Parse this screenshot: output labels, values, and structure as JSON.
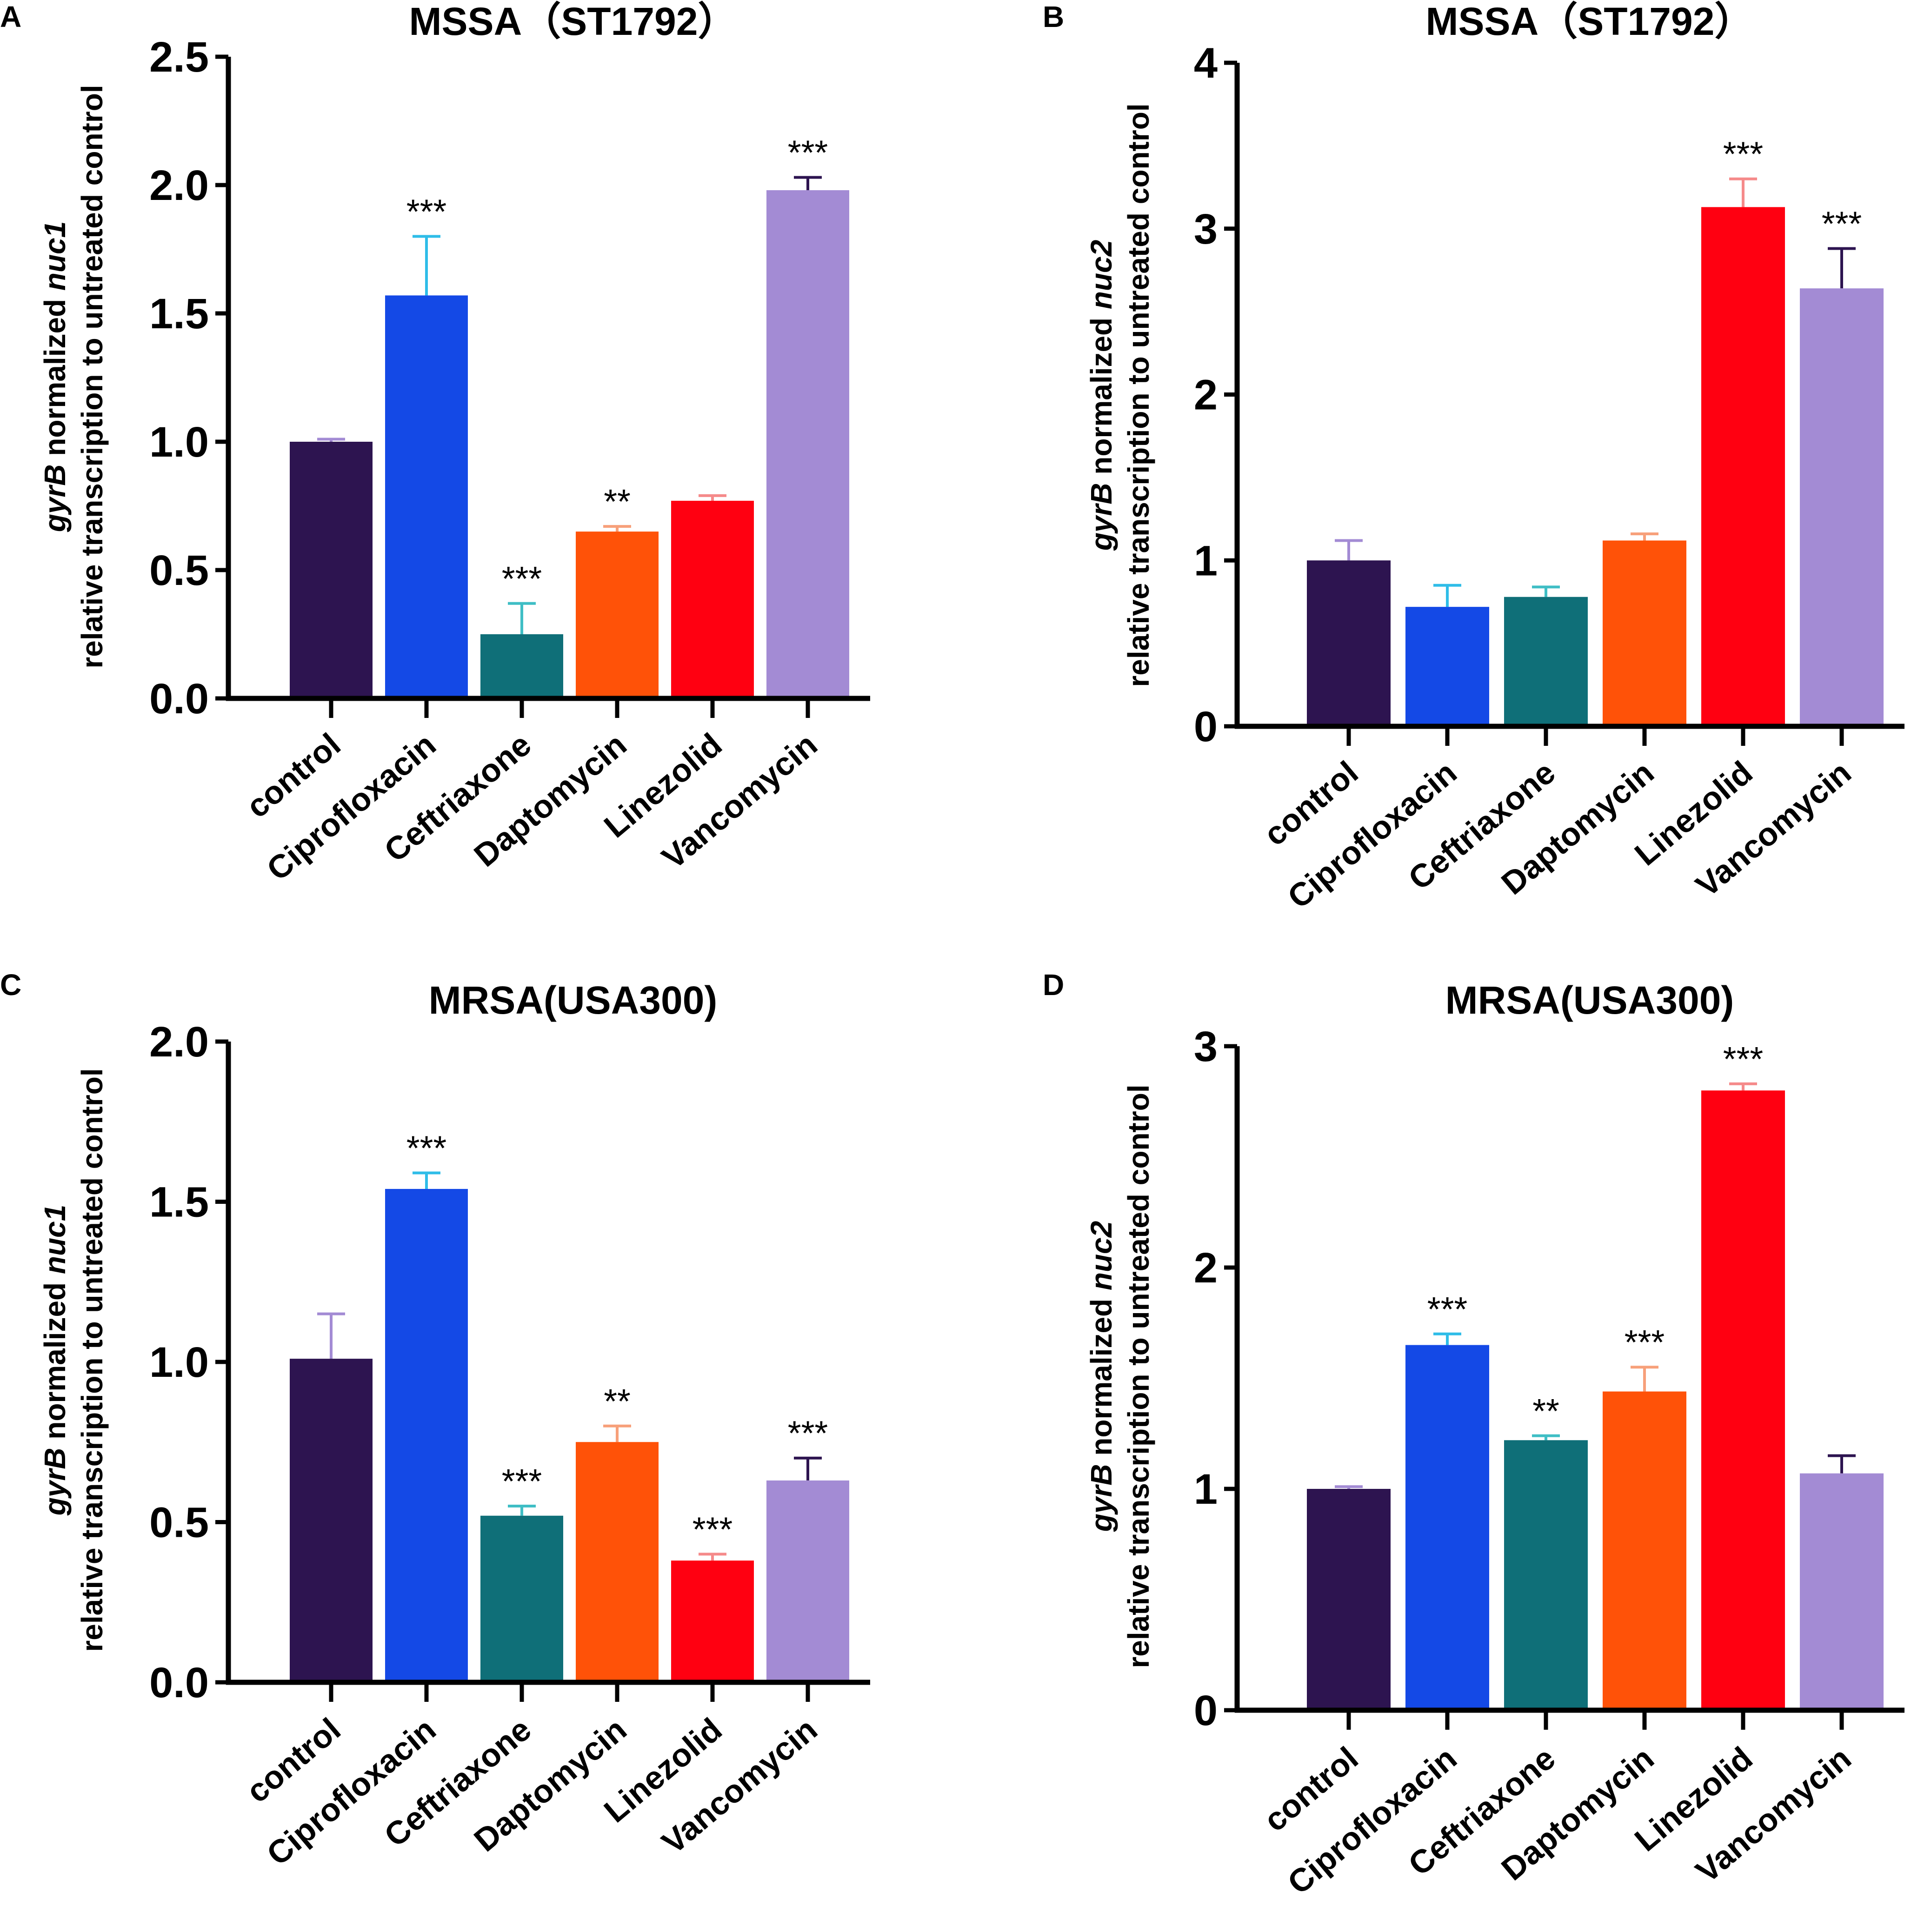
{
  "chart_data": [
    {
      "type": "bar",
      "panel": "A",
      "title": "MSSA（ST1792）",
      "ylabel_prefix": "gyrB",
      "ylabel_middle": " normalized ",
      "ylabel_gene": "nuc1",
      "ylabel_line2": "relative transcription to untreated control",
      "categories": [
        "control",
        "Ciprofloxacin",
        "Ceftriaxone",
        "Daptomycin",
        "Linezolid",
        "Vancomycin"
      ],
      "values": [
        1.0,
        1.57,
        0.25,
        0.65,
        0.77,
        1.98
      ],
      "errors": [
        0.01,
        0.23,
        0.12,
        0.02,
        0.02,
        0.05
      ],
      "significance": [
        "",
        "***",
        "***",
        "**",
        "",
        "***"
      ],
      "ylim": [
        0,
        2.5
      ],
      "yticks": [
        "0.0",
        "0.5",
        "1.0",
        "1.5",
        "2.0",
        "2.5"
      ]
    },
    {
      "type": "bar",
      "panel": "B",
      "title": "MSSA（ST1792）",
      "ylabel_prefix": "gyrB",
      "ylabel_middle": " normalized ",
      "ylabel_gene": "nuc2",
      "ylabel_line2": "relative transcription to untreated control",
      "categories": [
        "control",
        "Ciprofloxacin",
        "Ceftriaxone",
        "Daptomycin",
        "Linezolid",
        "Vancomycin"
      ],
      "values": [
        1.0,
        0.72,
        0.78,
        1.12,
        3.13,
        2.64
      ],
      "errors": [
        0.12,
        0.13,
        0.06,
        0.04,
        0.17,
        0.24
      ],
      "significance": [
        "",
        "",
        "",
        "",
        "***",
        "***"
      ],
      "ylim": [
        0,
        4
      ],
      "yticks": [
        "0",
        "1",
        "2",
        "3",
        "4"
      ]
    },
    {
      "type": "bar",
      "panel": "C",
      "title": "MRSA(USA300)",
      "ylabel_prefix": "gyrB",
      "ylabel_middle": " normalized ",
      "ylabel_gene": "nuc1",
      "ylabel_line2": "relative transcription to untreated control",
      "categories": [
        "control",
        "Ciprofloxacin",
        "Ceftriaxone",
        "Daptomycin",
        "Linezolid",
        "Vancomycin"
      ],
      "values": [
        1.01,
        1.54,
        0.52,
        0.75,
        0.38,
        0.63
      ],
      "errors": [
        0.14,
        0.05,
        0.03,
        0.05,
        0.02,
        0.07
      ],
      "significance": [
        "",
        "***",
        "***",
        "**",
        "***",
        "***"
      ],
      "ylim": [
        0,
        2.0
      ],
      "yticks": [
        "0.0",
        "0.5",
        "1.0",
        "1.5",
        "2.0"
      ]
    },
    {
      "type": "bar",
      "panel": "D",
      "title": "MRSA(USA300)",
      "ylabel_prefix": "gyrB",
      "ylabel_middle": " normalized ",
      "ylabel_gene": "nuc2",
      "ylabel_line2": "relative transcription to untreated control",
      "categories": [
        "control",
        "Ciprofloxacin",
        "Ceftriaxone",
        "Daptomycin",
        "Linezolid",
        "Vancomycin"
      ],
      "values": [
        1.0,
        1.65,
        1.22,
        1.44,
        2.8,
        1.07
      ],
      "errors": [
        0.01,
        0.05,
        0.02,
        0.11,
        0.03,
        0.08
      ],
      "significance": [
        "",
        "***",
        "**",
        "***",
        "***",
        ""
      ],
      "ylim": [
        0,
        3
      ],
      "yticks": [
        "0",
        "1",
        "2",
        "3"
      ]
    }
  ],
  "colors": {
    "bars": [
      "#2d1450",
      "#1449e6",
      "#0f6f78",
      "#ff5208",
      "#ff0011",
      "#a38bd4"
    ],
    "errors": [
      "#a38bd4",
      "#2fbde8",
      "#3fbec5",
      "#f7a07a",
      "#f58a8a",
      "#2d1450"
    ]
  }
}
